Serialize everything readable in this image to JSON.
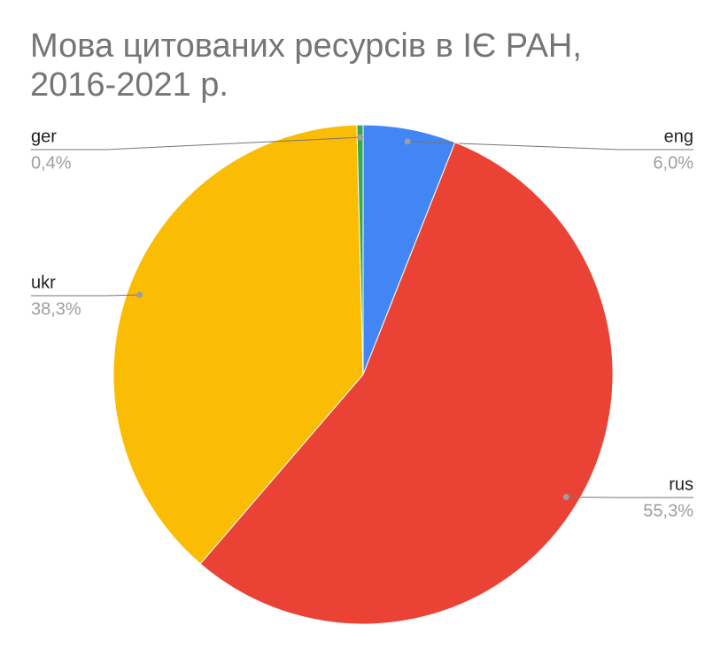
{
  "chart_data": {
    "type": "pie",
    "title": "Мова цитованих ресурсів в ІЄ РАН, 2016-2021 р.",
    "categories": [
      "eng",
      "rus",
      "ukr",
      "ger"
    ],
    "values": [
      6.0,
      55.3,
      38.3,
      0.4
    ],
    "value_labels": [
      "6,0%",
      "55,3%",
      "38,3%",
      "0,4%"
    ],
    "colors": [
      "#4285f4",
      "#ea4335",
      "#fbbc04",
      "#34a853"
    ]
  }
}
